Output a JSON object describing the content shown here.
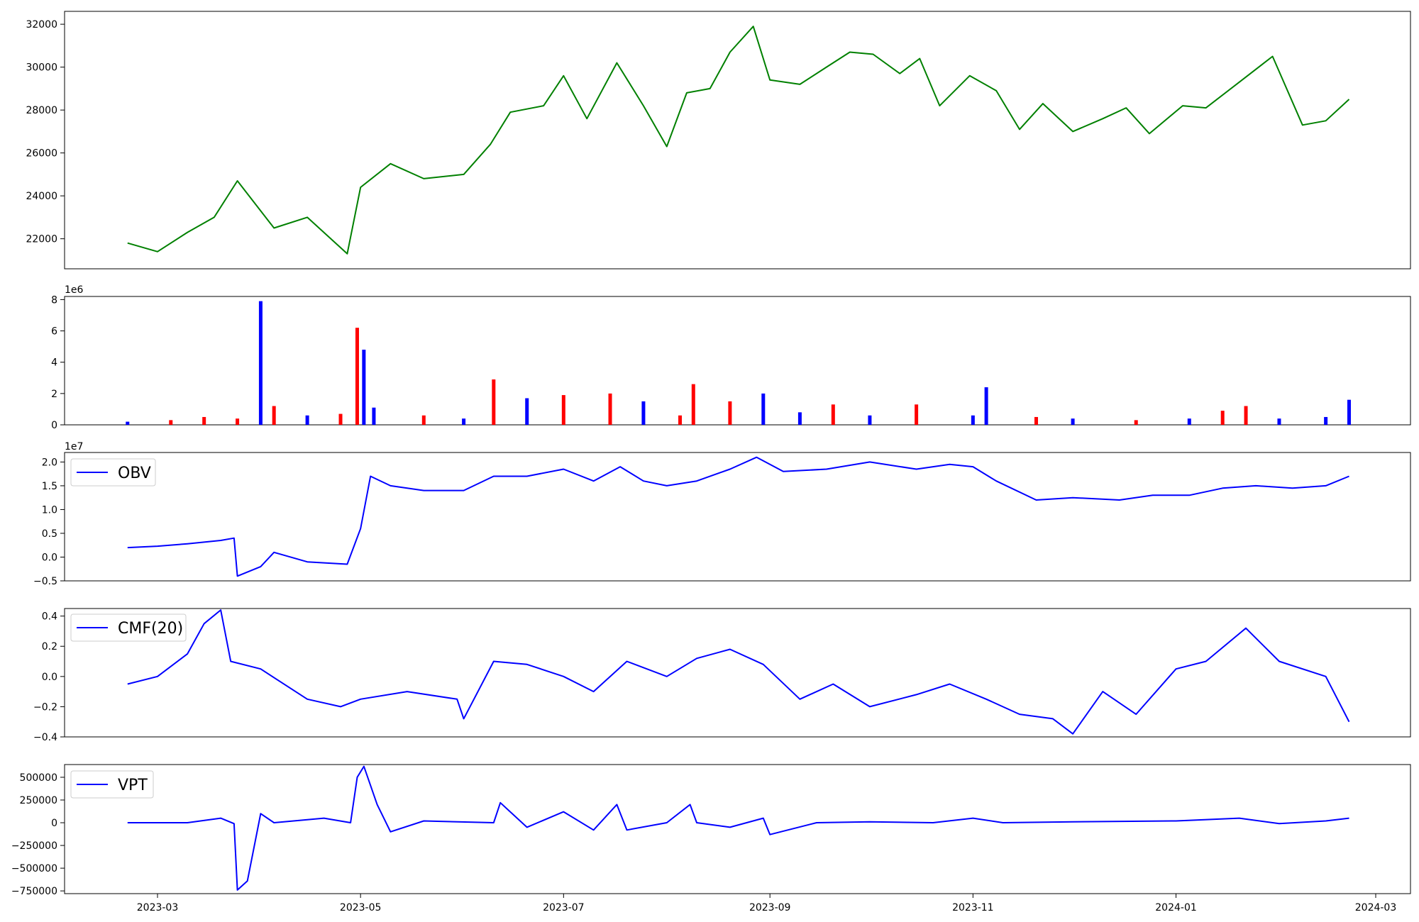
{
  "chart_data": [
    {
      "type": "line",
      "panel": "price",
      "color": "#008000",
      "ylim": [
        20600,
        32600
      ],
      "yticks": [
        22000,
        24000,
        26000,
        28000,
        30000,
        32000
      ],
      "ytick_labels": [
        "22000",
        "24000",
        "26000",
        "28000",
        "30000",
        "32000"
      ],
      "x": [
        "2023-02-20",
        "2023-03-01",
        "2023-03-10",
        "2023-03-18",
        "2023-03-25",
        "2023-04-05",
        "2023-04-15",
        "2023-04-27",
        "2023-05-01",
        "2023-05-10",
        "2023-05-20",
        "2023-06-01",
        "2023-06-09",
        "2023-06-15",
        "2023-06-25",
        "2023-07-01",
        "2023-07-08",
        "2023-07-17",
        "2023-07-25",
        "2023-08-01",
        "2023-08-07",
        "2023-08-14",
        "2023-08-20",
        "2023-08-27",
        "2023-09-01",
        "2023-09-10",
        "2023-09-18",
        "2023-09-25",
        "2023-10-02",
        "2023-10-10",
        "2023-10-16",
        "2023-10-22",
        "2023-10-31",
        "2023-11-08",
        "2023-11-15",
        "2023-11-22",
        "2023-12-01",
        "2023-12-10",
        "2023-12-17",
        "2023-12-24",
        "2024-01-03",
        "2024-01-10",
        "2024-01-20",
        "2024-01-30",
        "2024-02-08",
        "2024-02-15",
        "2024-02-22"
      ],
      "values": [
        21800,
        21400,
        22300,
        23000,
        24700,
        22500,
        23000,
        21300,
        24400,
        25500,
        24800,
        25000,
        26400,
        27900,
        28200,
        29600,
        27600,
        30200,
        28200,
        26300,
        28800,
        29000,
        30700,
        31900,
        29400,
        29200,
        30000,
        30700,
        30600,
        29700,
        30400,
        28200,
        29600,
        28900,
        27100,
        28300,
        27000,
        27600,
        28100,
        26900,
        28200,
        28100,
        29300,
        30500,
        27300,
        27500,
        28500
      ]
    },
    {
      "type": "bar",
      "panel": "volume",
      "offset_text": "1e6",
      "ylim": [
        0,
        8.2
      ],
      "yticks": [
        0,
        2,
        4,
        6,
        8
      ],
      "ytick_labels": [
        "0",
        "2",
        "4",
        "6",
        "8"
      ],
      "colors": {
        "up": "#ff0000",
        "down": "#0000ff",
        "flat": "#000000"
      },
      "x": [
        "2023-02-20",
        "2023-03-05",
        "2023-03-15",
        "2023-03-25",
        "2023-04-01",
        "2023-04-05",
        "2023-04-15",
        "2023-04-25",
        "2023-04-30",
        "2023-05-02",
        "2023-05-05",
        "2023-05-20",
        "2023-06-01",
        "2023-06-10",
        "2023-06-20",
        "2023-07-01",
        "2023-07-15",
        "2023-07-25",
        "2023-08-05",
        "2023-08-09",
        "2023-08-20",
        "2023-08-30",
        "2023-09-10",
        "2023-09-20",
        "2023-10-01",
        "2023-10-15",
        "2023-11-01",
        "2023-11-05",
        "2023-11-20",
        "2023-12-01",
        "2023-12-20",
        "2024-01-05",
        "2024-01-15",
        "2024-01-22",
        "2024-02-01",
        "2024-02-15",
        "2024-02-22"
      ],
      "values": [
        0.2,
        0.3,
        0.5,
        0.4,
        7.9,
        1.2,
        0.6,
        0.7,
        6.2,
        4.8,
        1.1,
        0.6,
        0.4,
        2.9,
        1.7,
        1.9,
        2.0,
        1.5,
        0.6,
        2.6,
        1.5,
        2.0,
        0.8,
        1.3,
        0.6,
        1.3,
        0.6,
        2.4,
        0.5,
        0.4,
        0.3,
        0.4,
        0.9,
        1.2,
        0.4,
        0.5,
        1.6
      ],
      "direction": [
        "down",
        "up",
        "up",
        "up",
        "down",
        "up",
        "down",
        "up",
        "up",
        "down",
        "down",
        "up",
        "down",
        "up",
        "down",
        "up",
        "up",
        "down",
        "up",
        "up",
        "up",
        "down",
        "down",
        "up",
        "down",
        "up",
        "down",
        "down",
        "up",
        "down",
        "up",
        "down",
        "up",
        "up",
        "down",
        "down",
        "down"
      ]
    },
    {
      "type": "line",
      "panel": "obv",
      "offset_text": "1e7",
      "color": "#0000ff",
      "legend": "OBV",
      "ylim": [
        -0.5,
        2.2
      ],
      "yticks": [
        -0.5,
        0.0,
        0.5,
        1.0,
        1.5,
        2.0
      ],
      "ytick_labels": [
        "−0.5",
        "0.0",
        "0.5",
        "1.0",
        "1.5",
        "2.0"
      ],
      "x": [
        "2023-02-20",
        "2023-03-01",
        "2023-03-10",
        "2023-03-20",
        "2023-03-24",
        "2023-03-25",
        "2023-04-01",
        "2023-04-05",
        "2023-04-15",
        "2023-04-27",
        "2023-05-01",
        "2023-05-04",
        "2023-05-10",
        "2023-05-20",
        "2023-06-01",
        "2023-06-10",
        "2023-06-20",
        "2023-07-01",
        "2023-07-10",
        "2023-07-18",
        "2023-07-25",
        "2023-08-01",
        "2023-08-10",
        "2023-08-20",
        "2023-08-28",
        "2023-09-05",
        "2023-09-18",
        "2023-10-01",
        "2023-10-15",
        "2023-10-25",
        "2023-11-01",
        "2023-11-08",
        "2023-11-20",
        "2023-12-01",
        "2023-12-15",
        "2023-12-25",
        "2024-01-05",
        "2024-01-15",
        "2024-01-25",
        "2024-02-05",
        "2024-02-15",
        "2024-02-22"
      ],
      "values": [
        0.2,
        0.23,
        0.28,
        0.35,
        0.4,
        -0.4,
        -0.2,
        0.1,
        -0.1,
        -0.15,
        0.6,
        1.7,
        1.5,
        1.4,
        1.4,
        1.7,
        1.7,
        1.85,
        1.6,
        1.9,
        1.6,
        1.5,
        1.6,
        1.85,
        2.1,
        1.8,
        1.85,
        2.0,
        1.85,
        1.95,
        1.9,
        1.6,
        1.2,
        1.25,
        1.2,
        1.3,
        1.3,
        1.45,
        1.5,
        1.45,
        1.5,
        1.7
      ]
    },
    {
      "type": "line",
      "panel": "cmf",
      "color": "#0000ff",
      "legend": "CMF(20)",
      "ylim": [
        -0.4,
        0.45
      ],
      "yticks": [
        -0.4,
        -0.2,
        0.0,
        0.2,
        0.4
      ],
      "ytick_labels": [
        "−0.4",
        "−0.2",
        "0.0",
        "0.2",
        "0.4"
      ],
      "x": [
        "2023-02-20",
        "2023-03-01",
        "2023-03-10",
        "2023-03-15",
        "2023-03-20",
        "2023-03-23",
        "2023-04-01",
        "2023-04-15",
        "2023-04-25",
        "2023-05-01",
        "2023-05-15",
        "2023-05-30",
        "2023-06-01",
        "2023-06-10",
        "2023-06-20",
        "2023-07-01",
        "2023-07-10",
        "2023-07-20",
        "2023-08-01",
        "2023-08-10",
        "2023-08-20",
        "2023-08-30",
        "2023-09-10",
        "2023-09-20",
        "2023-10-01",
        "2023-10-15",
        "2023-10-25",
        "2023-11-05",
        "2023-11-15",
        "2023-11-25",
        "2023-12-01",
        "2023-12-10",
        "2023-12-20",
        "2024-01-01",
        "2024-01-10",
        "2024-01-22",
        "2024-02-01",
        "2024-02-15",
        "2024-02-22"
      ],
      "values": [
        -0.05,
        0.0,
        0.15,
        0.35,
        0.44,
        0.1,
        0.05,
        -0.15,
        -0.2,
        -0.15,
        -0.1,
        -0.15,
        -0.28,
        0.1,
        0.08,
        0.0,
        -0.1,
        0.1,
        0.0,
        0.12,
        0.18,
        0.08,
        -0.15,
        -0.05,
        -0.2,
        -0.12,
        -0.05,
        -0.15,
        -0.25,
        -0.28,
        -0.38,
        -0.1,
        -0.25,
        0.05,
        0.1,
        0.32,
        0.1,
        0.0,
        -0.3
      ]
    },
    {
      "type": "line",
      "panel": "vpt",
      "color": "#0000ff",
      "legend": "VPT",
      "ylim": [
        -780000,
        640000
      ],
      "yticks": [
        -750000,
        -500000,
        -250000,
        0,
        250000,
        500000
      ],
      "ytick_labels": [
        "−750000",
        "−500000",
        "−250000",
        "0",
        "250000",
        "500000"
      ],
      "x_label_ticks": [
        "2023-03-01",
        "2023-05-01",
        "2023-07-01",
        "2023-09-01",
        "2023-11-01",
        "2024-01-01",
        "2024-03-01"
      ],
      "xtick_labels": [
        "2023-03",
        "2023-05",
        "2023-07",
        "2023-09",
        "2023-11",
        "2024-01",
        "2024-03"
      ],
      "x": [
        "2023-02-20",
        "2023-03-10",
        "2023-03-20",
        "2023-03-24",
        "2023-03-25",
        "2023-03-28",
        "2023-04-01",
        "2023-04-05",
        "2023-04-20",
        "2023-04-28",
        "2023-04-30",
        "2023-05-02",
        "2023-05-06",
        "2023-05-10",
        "2023-05-20",
        "2023-06-10",
        "2023-06-12",
        "2023-06-20",
        "2023-07-01",
        "2023-07-10",
        "2023-07-17",
        "2023-07-20",
        "2023-08-01",
        "2023-08-08",
        "2023-08-10",
        "2023-08-20",
        "2023-08-30",
        "2023-09-01",
        "2023-09-15",
        "2023-10-01",
        "2023-10-20",
        "2023-11-01",
        "2023-11-10",
        "2023-12-01",
        "2024-01-01",
        "2024-01-20",
        "2024-02-01",
        "2024-02-15",
        "2024-02-22"
      ],
      "values": [
        0,
        0,
        50000,
        -10000,
        -740000,
        -640000,
        100000,
        0,
        50000,
        0,
        500000,
        620000,
        200000,
        -100000,
        20000,
        0,
        220000,
        -50000,
        120000,
        -80000,
        200000,
        -80000,
        0,
        200000,
        0,
        -50000,
        50000,
        -130000,
        0,
        10000,
        0,
        50000,
        0,
        10000,
        20000,
        50000,
        -10000,
        20000,
        50000
      ]
    }
  ]
}
